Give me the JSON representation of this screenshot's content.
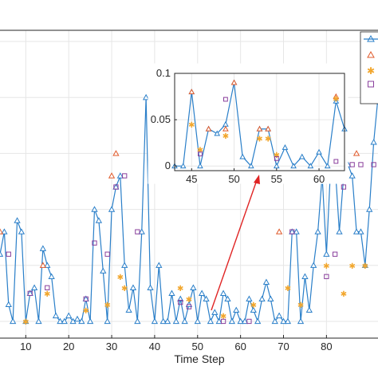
{
  "chart_data": {
    "type": "line",
    "xlabel": "Time Step",
    "ylabel": "",
    "title": "",
    "xlim": [
      4,
      92
    ],
    "ylim": [
      -0.015,
      0.26
    ],
    "xticks": [
      10,
      20,
      30,
      40,
      50,
      60,
      70,
      80
    ],
    "grid": true,
    "legend_placement": "top-right",
    "colors": {
      "series1": "#2a7fc9",
      "series2": "#e05a2b",
      "series3": "#f2a72e",
      "series4": "#8a3f9c",
      "arrow": "#e02424",
      "grid": "#e6e6e6",
      "axis": "#262626"
    },
    "series": [
      {
        "marker": "triangle",
        "x": [
          4,
          5,
          6,
          7,
          8,
          9,
          10,
          11,
          12,
          13,
          14,
          15,
          16,
          17,
          18,
          19,
          20,
          21,
          22,
          23,
          24,
          25,
          26,
          27,
          28,
          29,
          30,
          31,
          32,
          33,
          34,
          35,
          36,
          37,
          38,
          39,
          40,
          41,
          42,
          43,
          44,
          45,
          46,
          47,
          48,
          49,
          50,
          51,
          52,
          53,
          54,
          55,
          56,
          57,
          58,
          59,
          60,
          61,
          62,
          63,
          64,
          65,
          66,
          67,
          68,
          69,
          70,
          71,
          72,
          73,
          74,
          75,
          76,
          77,
          78,
          79,
          80,
          81,
          82,
          83,
          84,
          85,
          86,
          87,
          88,
          89,
          90,
          91,
          92
        ],
        "values": [
          0.06,
          0.08,
          0.015,
          0.0,
          0.09,
          0.08,
          0.0,
          0.025,
          0.03,
          0.0,
          0.065,
          0.05,
          0.04,
          0.005,
          0.0,
          0.0,
          0.005,
          0.0,
          0.002,
          0.0,
          0.02,
          0.0,
          0.1,
          0.09,
          0.045,
          0.0,
          0.1,
          0.12,
          0.13,
          0.05,
          0.01,
          0.03,
          0.0,
          0.08,
          0.2,
          0.03,
          0.0,
          0.05,
          0.0,
          0.0,
          0.025,
          0.0,
          0.02,
          0.0,
          0.015,
          0.03,
          0.0,
          0.025,
          0.02,
          0.0,
          0.008,
          0.0,
          0.025,
          0.02,
          0.0,
          0.01,
          0.0,
          0.0,
          0.02,
          0.01,
          0.0,
          0.02,
          0.035,
          0.02,
          0.0,
          0.005,
          0.0,
          0.0,
          0.08,
          0.08,
          0.0,
          0.04,
          0.01,
          0.05,
          0.08,
          0.13,
          0.06,
          0.14,
          0.14,
          0.08,
          0.13,
          0.14,
          0.13,
          0.08,
          0.08,
          0.05,
          0.1,
          0.16,
          0.2
        ]
      },
      {
        "marker": "triangle",
        "x": [
          4,
          14,
          30,
          31,
          69,
          87,
          90,
          91
        ],
        "values": [
          0.08,
          0.05,
          0.13,
          0.15,
          0.08,
          0.15,
          0.2,
          0.2
        ]
      },
      {
        "marker": "star",
        "x": [
          10,
          15,
          24,
          29,
          32,
          33,
          46,
          48,
          56,
          63,
          71,
          74,
          80,
          84,
          86,
          89
        ],
        "values": [
          0.0,
          0.025,
          0.01,
          0.015,
          0.04,
          0.03,
          0.03,
          0.02,
          0.005,
          0.015,
          0.03,
          0.015,
          0.05,
          0.025,
          0.05,
          0.05
        ]
      },
      {
        "marker": "square",
        "x": [
          6,
          11,
          15,
          24,
          26,
          29,
          31,
          33,
          36,
          46,
          48,
          56,
          62,
          72,
          80,
          82,
          84,
          86,
          88,
          91
        ],
        "values": [
          0.06,
          0.025,
          0.03,
          0.02,
          0.07,
          0.06,
          0.12,
          0.13,
          0.08,
          0.017,
          0.013,
          0.0,
          0.0,
          0.08,
          0.04,
          0.06,
          0.12,
          0.14,
          0.14,
          0.14
        ]
      }
    ],
    "inset": {
      "xlim": [
        43,
        63
      ],
      "ylim": [
        -0.005,
        0.1
      ],
      "xticks": [
        45,
        50,
        55,
        60
      ],
      "yticks": [
        0,
        0.05,
        0.1
      ],
      "ytick_labels": [
        "0",
        "0.05",
        "0.1"
      ],
      "series": [
        {
          "marker": "triangle",
          "x": [
            43,
            44,
            45,
            46,
            47,
            48,
            49,
            50,
            51,
            52,
            53,
            54,
            55,
            56,
            57,
            58,
            59,
            60,
            61,
            62,
            63
          ],
          "values": [
            0.0,
            0.0,
            0.08,
            0.0,
            0.04,
            0.035,
            0.045,
            0.09,
            0.01,
            0.0,
            0.04,
            0.04,
            0.0,
            0.02,
            0.0,
            0.01,
            0.0,
            0.015,
            0.0,
            0.07,
            0.04
          ]
        },
        {
          "marker": "triangle",
          "x": [
            45,
            47,
            49,
            50,
            53,
            54,
            62
          ],
          "values": [
            0.08,
            0.04,
            0.04,
            0.09,
            0.04,
            0.04,
            0.075
          ]
        },
        {
          "marker": "star",
          "x": [
            45,
            46,
            49,
            53,
            54,
            55,
            62
          ],
          "values": [
            0.045,
            0.018,
            0.033,
            0.03,
            0.03,
            0.012,
            0.073
          ]
        },
        {
          "marker": "square",
          "x": [
            46,
            49,
            55,
            62
          ],
          "values": [
            0.013,
            0.072,
            0.008,
            0.005
          ]
        }
      ]
    }
  }
}
